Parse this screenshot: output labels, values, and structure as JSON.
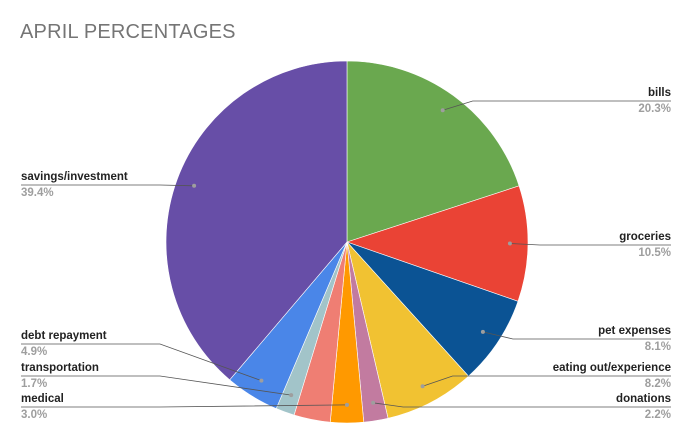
{
  "chart_data": {
    "type": "pie",
    "title": "APRIL PERCENTAGES",
    "start_angle_deg": 0,
    "direction": "clockwise",
    "slices": [
      {
        "label": "bills",
        "value_label": "20.3%",
        "value": 20.3,
        "color": "#6aa84f"
      },
      {
        "label": "groceries",
        "value_label": "10.5%",
        "value": 10.5,
        "color": "#ea4335"
      },
      {
        "label": "pet expenses",
        "value_label": "8.1%",
        "value": 8.1,
        "color": "#0b5394"
      },
      {
        "label": "eating out/experience",
        "value_label": "8.2%",
        "value": 8.2,
        "color": "#f1c232"
      },
      {
        "label": "donations",
        "value_label": "2.2%",
        "value": 2.2,
        "color": "#c27ba0"
      },
      {
        "label": "medical",
        "value_label": "3.0%",
        "value": 3.0,
        "color": "#ff9900"
      },
      {
        "label": "",
        "value_label": "",
        "value": 3.3,
        "color": "#ef7e73"
      },
      {
        "label": "transportation",
        "value_label": "1.7%",
        "value": 1.7,
        "color": "#a2c4c9"
      },
      {
        "label": "debt repayment",
        "value_label": "4.9%",
        "value": 4.9,
        "color": "#4a86e8"
      },
      {
        "label": "savings/investment",
        "value_label": "39.4%",
        "value": 39.4,
        "color": "#674ea7"
      }
    ]
  }
}
